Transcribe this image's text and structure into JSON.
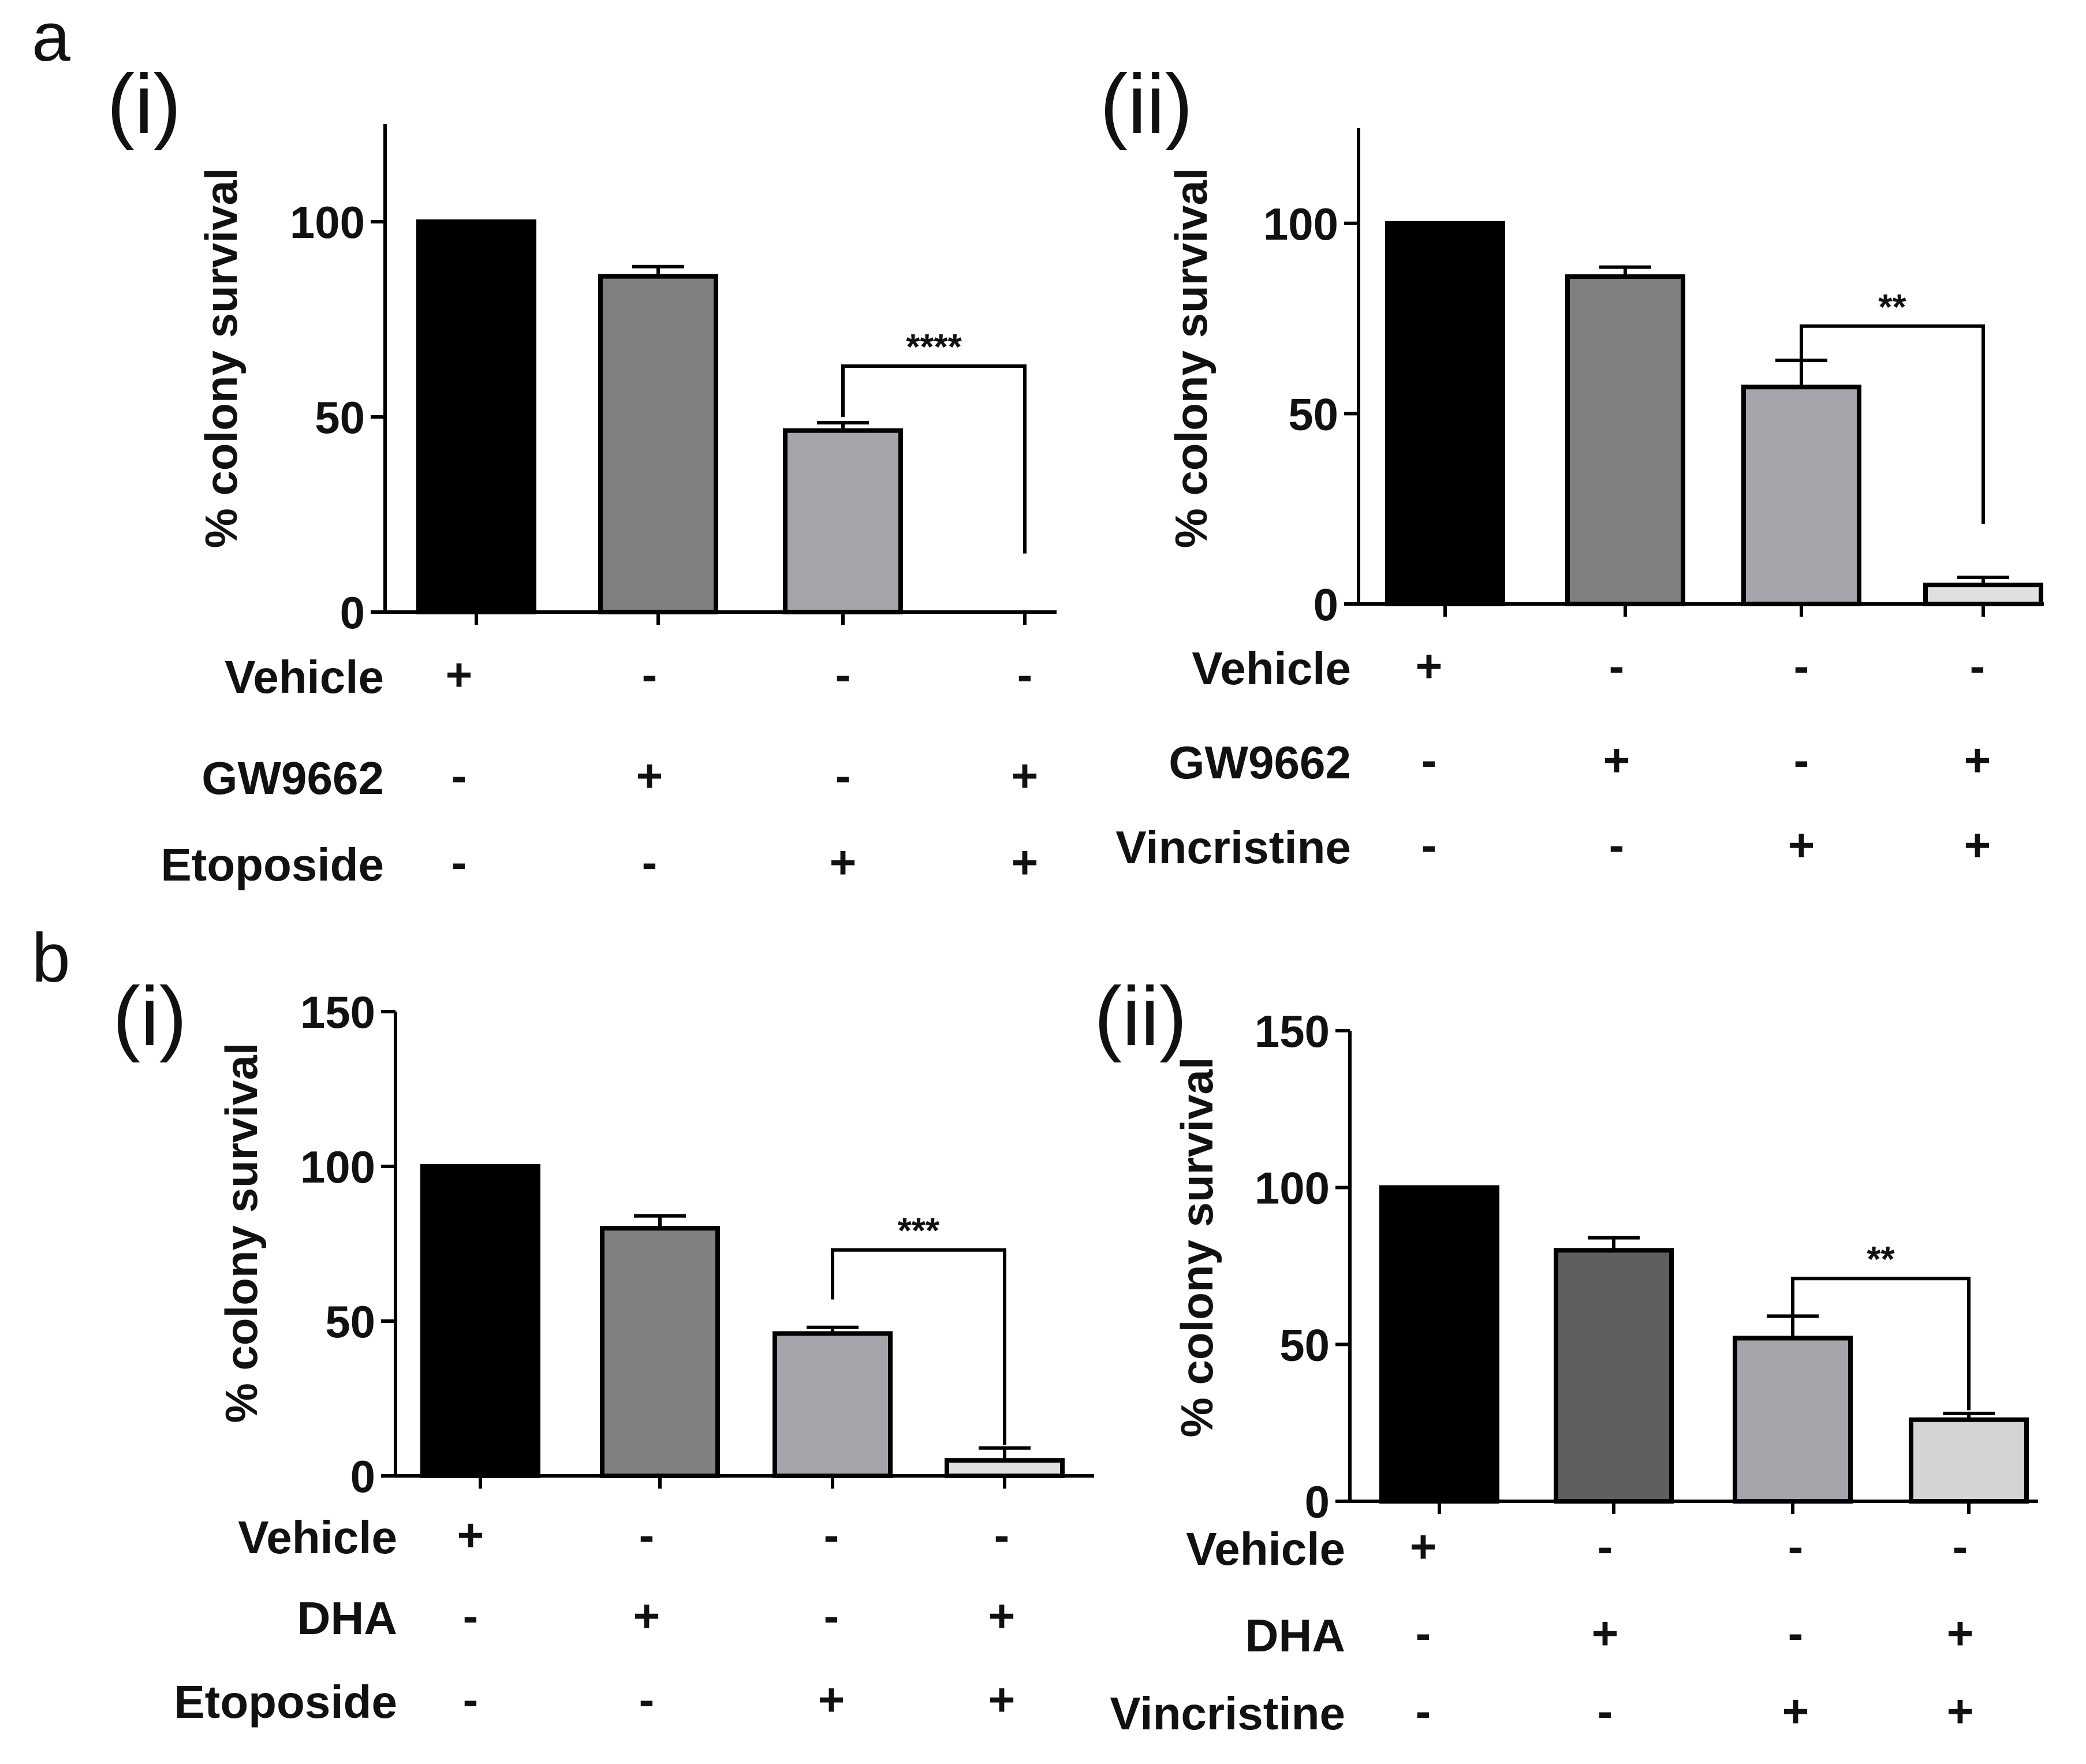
{
  "panels": {
    "a": "a",
    "b": "b"
  },
  "chart_data": [
    {
      "id": "a-i",
      "type": "bar",
      "subpanel": "(i)",
      "ylabel": "% colony survival",
      "ylim": [
        0,
        125
      ],
      "yticks": [
        0,
        50,
        100
      ],
      "categories": [
        "1",
        "2",
        "3",
        "4"
      ],
      "values": [
        100,
        86,
        46.5,
        0
      ],
      "errors": [
        0,
        2.5,
        2,
        0
      ],
      "colors": [
        "#000000",
        "#808080",
        "#a4a4ab",
        "#ffffff"
      ],
      "treatments": [
        {
          "label": "Vehicle",
          "signs": [
            "+",
            "-",
            "-",
            "-"
          ]
        },
        {
          "label": "GW9662",
          "signs": [
            "-",
            "+",
            "-",
            "+"
          ]
        },
        {
          "label": "Etoposide",
          "signs": [
            "-",
            "-",
            "+",
            "+"
          ]
        }
      ],
      "significance": {
        "from": 2,
        "to": 3,
        "label": "****",
        "y": 63,
        "y_from": 50,
        "y_to": 15
      }
    },
    {
      "id": "a-ii",
      "type": "bar",
      "subpanel": "(ii)",
      "ylabel": "% colony survival",
      "ylim": [
        0,
        125
      ],
      "yticks": [
        0,
        50,
        100
      ],
      "categories": [
        "1",
        "2",
        "3",
        "4"
      ],
      "values": [
        100,
        86,
        57,
        5
      ],
      "errors": [
        0,
        2.5,
        7,
        2
      ],
      "colors": [
        "#000000",
        "#808080",
        "#a4a4ab",
        "#e0e0e0"
      ],
      "treatments": [
        {
          "label": "Vehicle",
          "signs": [
            "+",
            "-",
            "-",
            "-"
          ]
        },
        {
          "label": "GW9662",
          "signs": [
            "-",
            "+",
            "-",
            "+"
          ]
        },
        {
          "label": "Vincristine",
          "signs": [
            "-",
            "-",
            "+",
            "+"
          ]
        }
      ],
      "significance": {
        "from": 2,
        "to": 3,
        "label": "**",
        "y": 73,
        "y_from": 64,
        "y_to": 21
      }
    },
    {
      "id": "b-i",
      "type": "bar",
      "subpanel": "(i)",
      "ylabel": "% colony survival",
      "ylim": [
        0,
        150
      ],
      "yticks": [
        0,
        50,
        100,
        150
      ],
      "categories": [
        "1",
        "2",
        "3",
        "4"
      ],
      "values": [
        100,
        80,
        46,
        5
      ],
      "errors": [
        0,
        4,
        2,
        4
      ],
      "colors": [
        "#000000",
        "#808080",
        "#a4a4ab",
        "#e0e0e0"
      ],
      "treatments": [
        {
          "label": "Vehicle",
          "signs": [
            "+",
            "-",
            "-",
            "-"
          ]
        },
        {
          "label": "DHA",
          "signs": [
            "-",
            "+",
            "-",
            "+"
          ]
        },
        {
          "label": "Etoposide",
          "signs": [
            "-",
            "-",
            "+",
            "+"
          ]
        }
      ],
      "significance": {
        "from": 2,
        "to": 3,
        "label": "***",
        "y": 73,
        "y_from": 57,
        "y_to": 10
      }
    },
    {
      "id": "b-ii",
      "type": "bar",
      "subpanel": "(ii)",
      "ylabel": "% colony survival",
      "ylim": [
        0,
        150
      ],
      "yticks": [
        0,
        50,
        100,
        150
      ],
      "categories": [
        "1",
        "2",
        "3",
        "4"
      ],
      "values": [
        100,
        80,
        52,
        26
      ],
      "errors": [
        0,
        4,
        7,
        2
      ],
      "colors": [
        "#000000",
        "#5f5f5f",
        "#a4a4ab",
        "#d4d4d4"
      ],
      "treatments": [
        {
          "label": "Vehicle",
          "signs": [
            "+",
            "-",
            "-",
            "-"
          ]
        },
        {
          "label": "DHA",
          "signs": [
            "-",
            "+",
            "-",
            "+"
          ]
        },
        {
          "label": "Vincristine",
          "signs": [
            "-",
            "-",
            "+",
            "+"
          ]
        }
      ],
      "significance": {
        "from": 2,
        "to": 3,
        "label": "**",
        "y": 71,
        "y_from": 59,
        "y_to": 29
      }
    }
  ]
}
